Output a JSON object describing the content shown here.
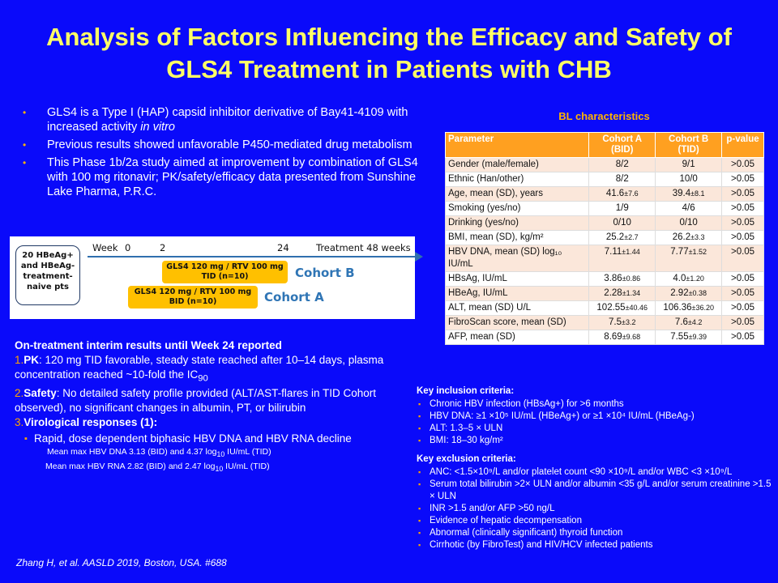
{
  "title": "Analysis of Factors Influencing the Efficacy and Safety of GLS4 Treatment in Patients with CHB",
  "bullets": [
    {
      "text": "GLS4 is a Type I (HAP) capsid inhibitor derivative of Bay41-4109 with increased activity ",
      "italic": "in vitro"
    },
    {
      "text": "Previous results showed unfavorable  P450-mediated drug metabolism",
      "italic": ""
    },
    {
      "text": "This Phase 1b/2a study aimed at improvement by combination of GLS4 with 100 mg ritonavir; PK/safety/efficacy  data presented from Sunshine Lake Pharma, P.R.C.",
      "italic": ""
    }
  ],
  "timeline": {
    "patients": "20 HBeAg+ and HBeAg- treatment-naive pts",
    "week_label": "Week",
    "w0": "0",
    "w2": "2",
    "w24": "24",
    "end": "Treatment 48 weeks",
    "cohort_b_regimen": "GLS4 120 mg / RTV 100 mg TID (n=10)",
    "cohort_a_regimen": "GLS4 120 mg / RTV 100 mg BID (n=10)",
    "cohort_b": "Cohort B",
    "cohort_a": "Cohort A"
  },
  "results": {
    "heading": "On-treatment interim results until Week 24 reported",
    "pk_num": "1.",
    "pk_label": "PK",
    "pk_text": ": 120 mg TID favorable, steady state reached after 10–14 days, plasma concentration reached ~10-fold the IC",
    "pk_sub": "90",
    "safety_num": "2.",
    "safety_label": "Safety",
    "safety_text": ": No detailed safety profile provided (ALT/AST-flares in TID Cohort observed),  no significant changes in albumin, PT, or bilirubin",
    "viro_num": "3.",
    "viro_label": "Virological responses (1)",
    "viro_colon": ":",
    "viro_bullet": "Rapid, dose dependent biphasic HBV DNA and HBV RNA decline",
    "dna_pre": "Mean max HBV DNA 3.13 (BID) and 4.37 log",
    "dna_sub": "10",
    "dna_post": " IU/mL (TID)",
    "rna_pre": "Mean max HBV RNA 2.82 (BID) and 2.47 log",
    "rna_sub": "10",
    "rna_post": " IU/mL (TID)"
  },
  "citation": "Zhang H, et al. AASLD 2019, Boston, USA. #688",
  "bl": {
    "title": "BL characteristics",
    "headers": [
      "Parameter",
      "Cohort A (BID)",
      "Cohort B (TID)",
      "p-value"
    ],
    "rows": [
      {
        "p": "Gender  (male/female)",
        "a": "8/2",
        "asd": "",
        "b": "9/1",
        "bsd": "",
        "pv": ">0.05"
      },
      {
        "p": "Ethnic (Han/other)",
        "a": "8/2",
        "asd": "",
        "b": "10/0",
        "bsd": "",
        "pv": ">0.05"
      },
      {
        "p": "Age, mean (SD), years",
        "a": "41.6",
        "asd": "±7.6",
        "b": "39.4",
        "bsd": "±8.1",
        "pv": ">0.05"
      },
      {
        "p": "Smoking (yes/no)",
        "a": "1/9",
        "asd": "",
        "b": "4/6",
        "bsd": "",
        "pv": ">0.05"
      },
      {
        "p": "Drinking (yes/no)",
        "a": "0/10",
        "asd": "",
        "b": "0/10",
        "bsd": "",
        "pv": ">0.05"
      },
      {
        "p": "BMI, mean (SD), kg/m²",
        "a": "25.2",
        "asd": "±2.7",
        "b": "26.2",
        "bsd": "±3.3",
        "pv": ">0.05"
      },
      {
        "p": "HBV DNA, mean (SD) log₁₀ IU/mL",
        "a": "7.11",
        "asd": "±1.44",
        "b": "7.77",
        "bsd": "±1.52",
        "pv": ">0.05"
      },
      {
        "p": "HBsAg, IU/mL",
        "a": "3.86",
        "asd": "±0.86",
        "b": "4.0",
        "bsd": "±1.20",
        "pv": ">0.05"
      },
      {
        "p": "HBeAg, IU/mL",
        "a": "2.28",
        "asd": "±1.34",
        "b": "2.92",
        "bsd": "±0.38",
        "pv": ">0.05"
      },
      {
        "p": "ALT, mean (SD) U/L",
        "a": "102.55",
        "asd": "±40.46",
        "b": "106.36",
        "bsd": "±36.20",
        "pv": ">0.05"
      },
      {
        "p": "FibroScan score, mean (SD)",
        "a": "7.5",
        "asd": "±3.2",
        "b": "7.6",
        "bsd": "±4.2",
        "pv": ">0.05"
      },
      {
        "p": "AFP, mean (SD)",
        "a": "8.69",
        "asd": "±9.68",
        "b": "7.55",
        "bsd": "±9.39",
        "pv": ">0.05"
      }
    ]
  },
  "inclusion": {
    "heading": "Key inclusion criteria:",
    "items": [
      "Chronic HBV infection (HBsAg+) for >6 months",
      "HBV DNA: ≥1 ×10⁵ IU/mL (HBeAg+) or ≥1 ×10⁴ IU/mL (HBeAg-)",
      "ALT: 1.3–5 × ULN",
      "BMI: 18–30 kg/m²"
    ]
  },
  "exclusion": {
    "heading": "Key exclusion criteria:",
    "items": [
      "ANC: <1.5×10⁹/L and/or platelet count <90 ×10⁹/L and/or WBC <3 ×10⁹/L",
      "Serum total bilirubin >2× ULN and/or albumin <35 g/L and/or serum creatinine >1.5 × ULN",
      "INR >1.5 and/or AFP >50 ng/L",
      "Evidence of hepatic decompensation",
      "Abnormal (clinically significant) thyroid function",
      "Cirrhotic (by FibroTest) and HIV/HCV infected patients"
    ]
  }
}
